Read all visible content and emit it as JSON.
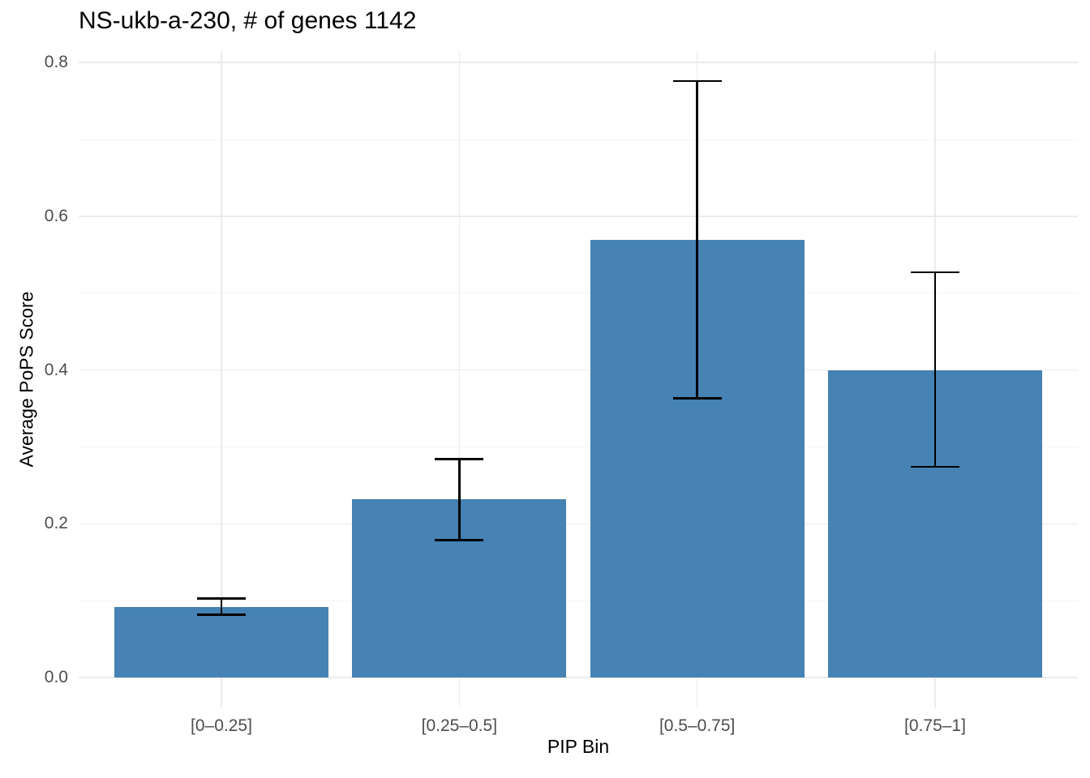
{
  "chart_data": {
    "type": "bar",
    "title": "NS-ukb-a-230, # of genes 1142",
    "xlabel": "PIP Bin",
    "ylabel": "Average PoPS Score",
    "categories": [
      "[0–0.25]",
      "[0.25–0.5]",
      "[0.5–0.75]",
      "[0.75–1]"
    ],
    "values": [
      0.092,
      0.232,
      0.569,
      0.4
    ],
    "error_low": [
      0.082,
      0.179,
      0.363,
      0.274
    ],
    "error_high": [
      0.103,
      0.284,
      0.776,
      0.527
    ],
    "yticks": [
      0.0,
      0.2,
      0.4,
      0.6,
      0.8
    ],
    "ytick_labels": [
      "0.0",
      "0.2",
      "0.4",
      "0.6",
      "0.8"
    ],
    "yticks_minor": [
      0.1,
      0.3,
      0.5,
      0.7
    ],
    "ylim": [
      -0.039,
      0.815
    ],
    "bar_color": "#4682B4",
    "error_color": "#000000",
    "grid_major_color": "#EBEBEB",
    "grid_minor_color": "#F5F5F5",
    "tick_label_color": "#4D4D4D",
    "title_color": "#000000",
    "grid": "on",
    "legend": "none"
  }
}
